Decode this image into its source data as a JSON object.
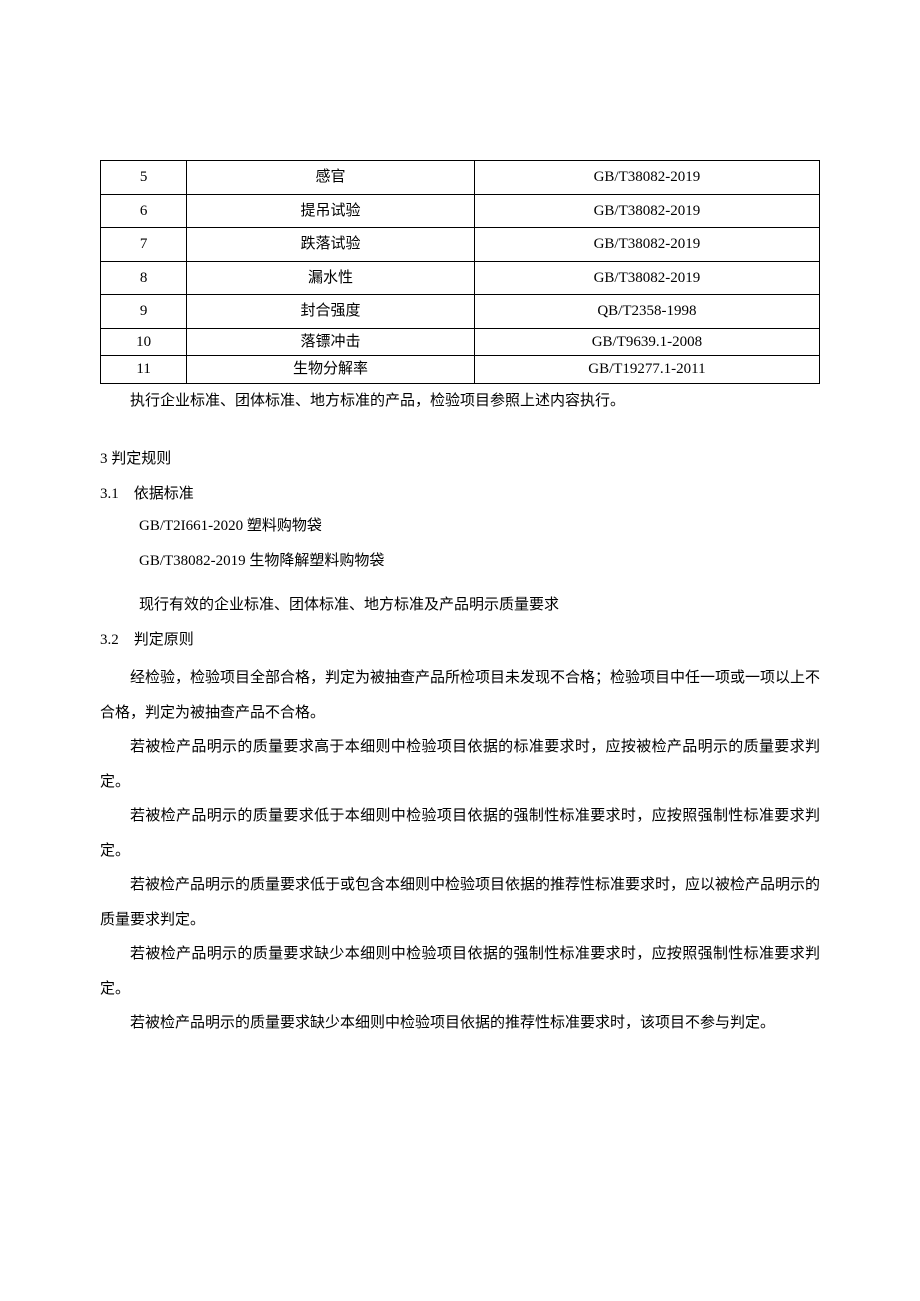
{
  "table": {
    "col_widths": [
      "12%",
      "40%",
      "48%"
    ],
    "border_color": "#000000",
    "rows": [
      {
        "num": "5",
        "item": "感官",
        "std": "GB/T38082-2019"
      },
      {
        "num": "6",
        "item": "提吊试验",
        "std": "GB/T38082-2019"
      },
      {
        "num": "7",
        "item": "跌落试验",
        "std": "GB/T38082-2019"
      },
      {
        "num": "8",
        "item": "漏水性",
        "std": "GB/T38082-2019"
      },
      {
        "num": "9",
        "item": "封合强度",
        "std": "QB/T2358-1998"
      },
      {
        "num": "10",
        "item": "落镖冲击",
        "std": "GB/T9639.1-2008"
      },
      {
        "num": "11",
        "item": "生物分解率",
        "std": "GB/T19277.1-2011"
      }
    ]
  },
  "table_note": "执行企业标准、团体标准、地方标准的产品，检验项目参照上述内容执行。",
  "sec3": {
    "heading": "3 判定规则",
    "sub1_heading": "3.1　依据标准",
    "sub1_lines": [
      "GB/T2I661-2020 塑料购物袋",
      "GB/T38082-2019 生物降解塑料购物袋",
      "现行有效的企业标准、团体标准、地方标准及产品明示质量要求"
    ],
    "sub2_heading": "3.2　判定原则",
    "sub2_paras": [
      "经检验，检验项目全部合格，判定为被抽查产品所检项目未发现不合格；检验项目中任一项或一项以上不合格，判定为被抽查产品不合格。",
      "若被检产品明示的质量要求高于本细则中检验项目依据的标准要求时，应按被检产品明示的质量要求判定。",
      "若被检产品明示的质量要求低于本细则中检验项目依据的强制性标准要求时，应按照强制性标准要求判定。",
      "若被检产品明示的质量要求低于或包含本细则中检验项目依据的推荐性标准要求时，应以被检产品明示的质量要求判定。",
      "若被检产品明示的质量要求缺少本细则中检验项目依据的强制性标准要求时，应按照强制性标准要求判定。",
      "若被检产品明示的质量要求缺少本细则中检验项目依据的推荐性标准要求时，该项目不参与判定。"
    ]
  }
}
